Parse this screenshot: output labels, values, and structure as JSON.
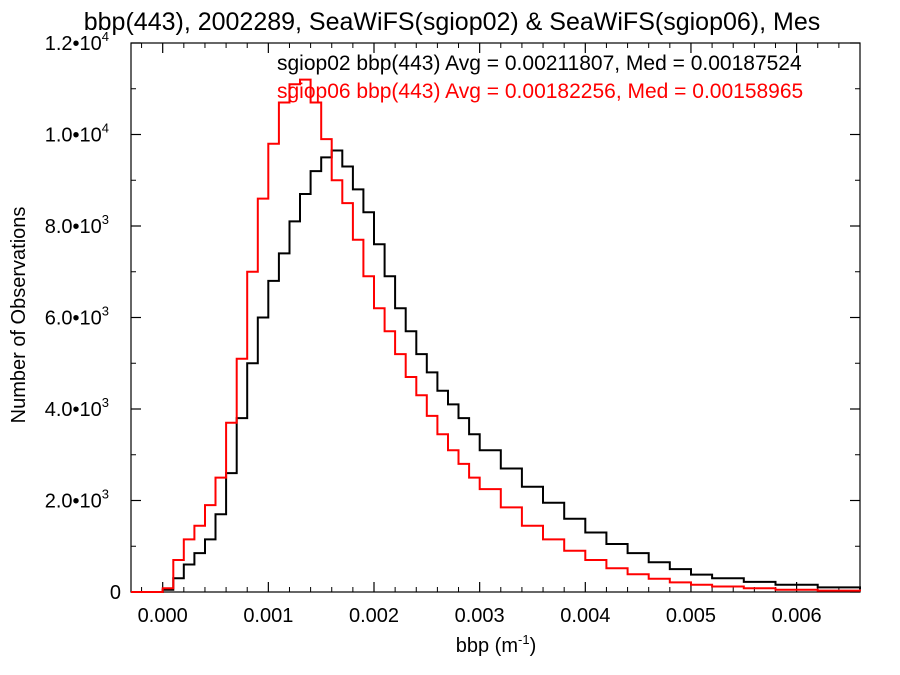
{
  "chart_data": {
    "type": "line",
    "title": "bbp(443), 2002289, SeaWiFS(sgiop02) & SeaWiFS(sgiop06), Mes",
    "xlabel": "bbp (m",
    "xlabel_sup": "-1",
    "xlabel_close": ")",
    "ylabel": "Number of Observations",
    "xlim": [
      -0.0003,
      0.0066
    ],
    "ylim": [
      0,
      12000
    ],
    "x_ticks": [
      {
        "value": 0.0,
        "label": "0.000"
      },
      {
        "value": 0.001,
        "label": "0.001"
      },
      {
        "value": 0.002,
        "label": "0.002"
      },
      {
        "value": 0.003,
        "label": "0.003"
      },
      {
        "value": 0.004,
        "label": "0.004"
      },
      {
        "value": 0.005,
        "label": "0.005"
      },
      {
        "value": 0.006,
        "label": "0.006"
      }
    ],
    "y_ticks": [
      {
        "value": 0,
        "mant": "0",
        "exp": ""
      },
      {
        "value": 2000,
        "mant": "2.0•10",
        "exp": "3"
      },
      {
        "value": 4000,
        "mant": "4.0•10",
        "exp": "3"
      },
      {
        "value": 6000,
        "mant": "6.0•10",
        "exp": "3"
      },
      {
        "value": 8000,
        "mant": "8.0•10",
        "exp": "3"
      },
      {
        "value": 10000,
        "mant": "1.0•10",
        "exp": "4"
      },
      {
        "value": 12000,
        "mant": "1.2•10",
        "exp": "4"
      }
    ],
    "grid": false,
    "legend_position": "top-right",
    "series": [
      {
        "name": "sgiop02 bbp(443) Avg = 0.00211807, Med = 0.00187524",
        "color": "#000000",
        "x": [
          -0.0003,
          -0.0001,
          0.0,
          0.0001,
          0.0002,
          0.0003,
          0.0004,
          0.0005,
          0.0006,
          0.0007,
          0.0008,
          0.0009,
          0.001,
          0.0011,
          0.0012,
          0.0013,
          0.0014,
          0.0015,
          0.0016,
          0.0017,
          0.0018,
          0.0019,
          0.002,
          0.0021,
          0.0022,
          0.0023,
          0.0024,
          0.0025,
          0.0026,
          0.0027,
          0.0028,
          0.0029,
          0.003,
          0.0032,
          0.0034,
          0.0036,
          0.0038,
          0.004,
          0.0042,
          0.0044,
          0.0046,
          0.0048,
          0.005,
          0.0052,
          0.0055,
          0.0058,
          0.0062,
          0.0066
        ],
        "y": [
          0,
          0,
          50,
          300,
          600,
          850,
          1150,
          1700,
          2600,
          3800,
          5000,
          6000,
          6800,
          7400,
          8100,
          8700,
          9200,
          9500,
          9650,
          9300,
          8800,
          8300,
          7600,
          6900,
          6200,
          5700,
          5200,
          4800,
          4400,
          4100,
          3800,
          3450,
          3100,
          2700,
          2300,
          1950,
          1600,
          1300,
          1050,
          850,
          650,
          500,
          380,
          300,
          220,
          160,
          100,
          60
        ]
      },
      {
        "name": "sgiop06 bbp(443) Avg = 0.00182256, Med = 0.00158965",
        "color": "#ff0000",
        "x": [
          -0.0003,
          -0.0001,
          0.0,
          0.0001,
          0.0002,
          0.0003,
          0.0004,
          0.0005,
          0.0006,
          0.0007,
          0.0008,
          0.0009,
          0.001,
          0.0011,
          0.0012,
          0.0013,
          0.0014,
          0.0015,
          0.0016,
          0.0017,
          0.0018,
          0.0019,
          0.002,
          0.0021,
          0.0022,
          0.0023,
          0.0024,
          0.0025,
          0.0026,
          0.0027,
          0.0028,
          0.0029,
          0.003,
          0.0032,
          0.0034,
          0.0036,
          0.0038,
          0.004,
          0.0042,
          0.0044,
          0.0046,
          0.0048,
          0.005,
          0.0052,
          0.0055,
          0.0058,
          0.0062,
          0.0066
        ],
        "y": [
          0,
          0,
          80,
          700,
          1150,
          1450,
          1900,
          2500,
          3700,
          5100,
          7000,
          8600,
          9800,
          10700,
          11100,
          11200,
          10700,
          9900,
          9000,
          8500,
          7700,
          6900,
          6200,
          5700,
          5200,
          4700,
          4300,
          3850,
          3450,
          3100,
          2800,
          2500,
          2250,
          1850,
          1450,
          1150,
          900,
          700,
          520,
          390,
          290,
          210,
          160,
          120,
          80,
          50,
          30,
          15
        ]
      }
    ]
  }
}
